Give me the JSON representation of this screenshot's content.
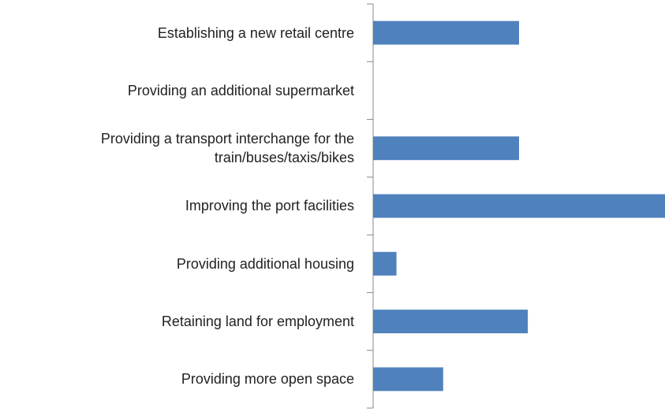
{
  "chart_data": {
    "type": "barh",
    "categories": [
      "Establishing a new retail centre",
      "Providing an additional supermarket",
      "Providing a transport interchange for the train/buses/taxis/bikes",
      "Improving the port facilities",
      "Providing additional housing",
      "Retaining land for employment",
      "Providing more open space"
    ],
    "values": [
      50,
      0,
      50,
      100,
      8,
      53,
      24
    ],
    "color": "#4f81bd",
    "xlim": [
      0,
      100
    ]
  }
}
